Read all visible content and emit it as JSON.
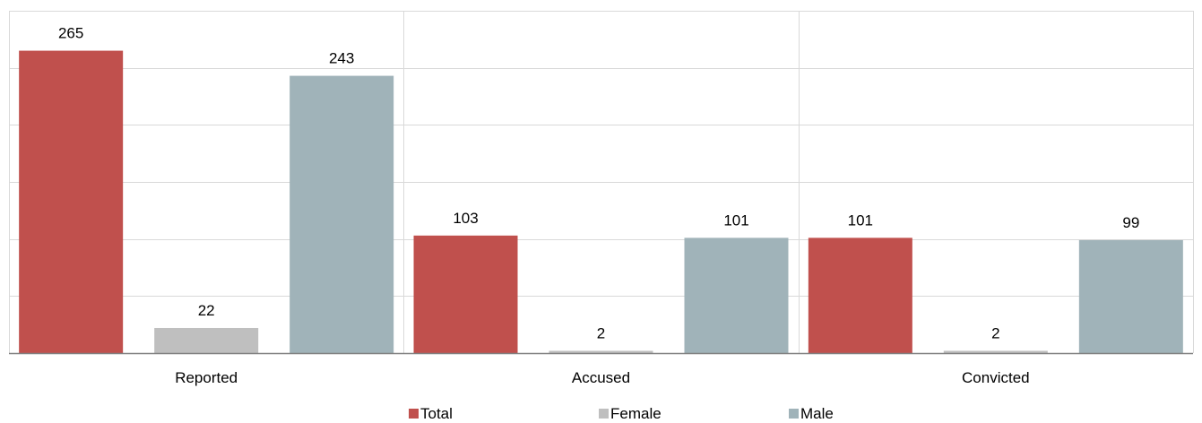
{
  "chart_data": {
    "type": "bar",
    "title": "",
    "xlabel": "",
    "ylabel": "",
    "categories": [
      "Reported",
      "Accused",
      "Convicted"
    ],
    "series": [
      {
        "name": "Total",
        "color": "#c0504d",
        "values": [
          265,
          103,
          101
        ]
      },
      {
        "name": "Female",
        "color": "#bfbfbf",
        "values": [
          22,
          2,
          2
        ]
      },
      {
        "name": "Male",
        "color": "#a0b3b9",
        "values": [
          243,
          101,
          99
        ]
      }
    ],
    "ylim": [
      0,
      300
    ],
    "y_tick_step": 50,
    "grid": true,
    "y_tick_labels_visible": false,
    "legend_position": "bottom-center",
    "data_labels": true
  }
}
